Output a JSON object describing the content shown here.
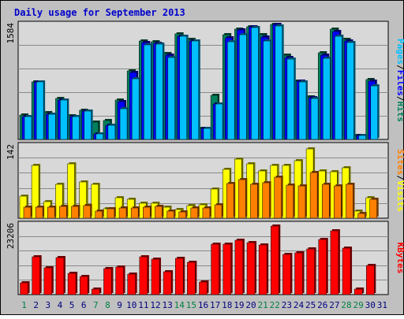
{
  "chart_data": {
    "type": "bar",
    "title": "Daily usage for September 2013",
    "colors": {
      "background": "#c0c0c0",
      "plot_background": "#d8d8d8",
      "title": "#0000cc",
      "grid": "#8a8a8a",
      "hits": "#00805c",
      "files": "#0000ff",
      "pages": "#00c0ff",
      "visits": "#ffff00",
      "sites": "#ff8000",
      "kbytes": "#ff0000",
      "weekend_label": "#008040",
      "weekday_label": "#000080"
    },
    "x": {
      "labels": [
        "1",
        "2",
        "3",
        "4",
        "5",
        "6",
        "7",
        "8",
        "9",
        "10",
        "11",
        "12",
        "13",
        "14",
        "15",
        "16",
        "17",
        "18",
        "19",
        "20",
        "21",
        "22",
        "23",
        "24",
        "25",
        "26",
        "27",
        "28",
        "29",
        "30",
        "31"
      ],
      "weekend_days": [
        1,
        7,
        8,
        14,
        15,
        21,
        22,
        28,
        29
      ]
    },
    "panels": [
      {
        "id": "hits_files_pages",
        "ymax_label": "1584",
        "ymax": 1584,
        "legend": [
          "Pages",
          "Files",
          "Hits"
        ],
        "series": [
          {
            "name": "Hits",
            "values": [
              340,
              790,
              370,
              560,
              330,
              400,
              240,
              260,
              540,
              940,
              1360,
              1340,
              1180,
              1450,
              1380,
              150,
              610,
              1440,
              1520,
              1550,
              1440,
              1584,
              1160,
              800,
              590,
              1190,
              1520,
              1380,
              50,
              820
            ]
          },
          {
            "name": "Files",
            "values": [
              320,
              790,
              350,
              540,
              310,
              390,
              80,
              200,
              520,
              920,
              1330,
              1320,
              1160,
              1420,
              1360,
              150,
              490,
              1400,
              1510,
              1550,
              1410,
              1584,
              1130,
              800,
              570,
              1160,
              1490,
              1360,
              50,
              800
            ]
          },
          {
            "name": "Pages",
            "values": [
              310,
              790,
              350,
              540,
              310,
              390,
              80,
              200,
              420,
              830,
              1300,
              1310,
              1130,
              1420,
              1360,
              150,
              490,
              1350,
              1440,
              1540,
              1360,
              1560,
              1110,
              790,
              560,
              1120,
              1420,
              1330,
              50,
              740
            ]
          }
        ]
      },
      {
        "id": "visits_sites",
        "ymax_label": "142",
        "ymax": 142,
        "legend": [
          "Sites",
          "Visits"
        ],
        "series": [
          {
            "name": "Visits",
            "values": [
              43,
              104,
              33,
              66,
              106,
              71,
              67,
              19,
              40,
              37,
              30,
              30,
              22,
              17,
              25,
              26,
              57,
              95,
              116,
              107,
              92,
              103,
              103,
              113,
              136,
              93,
              91,
              99,
              14,
              40
            ]
          },
          {
            "name": "Sites",
            "values": [
              21,
              21,
              22,
              23,
              23,
              24,
              14,
              19,
              20,
              20,
              22,
              23,
              14,
              13,
              20,
              20,
              26,
              68,
              75,
              66,
              69,
              80,
              65,
              64,
              89,
              66,
              64,
              66,
              9,
              37
            ]
          }
        ]
      },
      {
        "id": "kbytes",
        "ymax_label": "23206",
        "ymax": 23206,
        "legend": [
          "KBytes"
        ],
        "series": [
          {
            "name": "KBytes",
            "values": [
              4000,
              12600,
              8900,
              12200,
              7100,
              5900,
              1700,
              8600,
              9100,
              6700,
              12400,
              11700,
              7600,
              12000,
              10600,
              4300,
              16700,
              16700,
              18100,
              17300,
              16300,
              22700,
              13200,
              13800,
              15000,
              18200,
              21100,
              15500,
              1800,
              9700
            ]
          }
        ]
      }
    ]
  }
}
